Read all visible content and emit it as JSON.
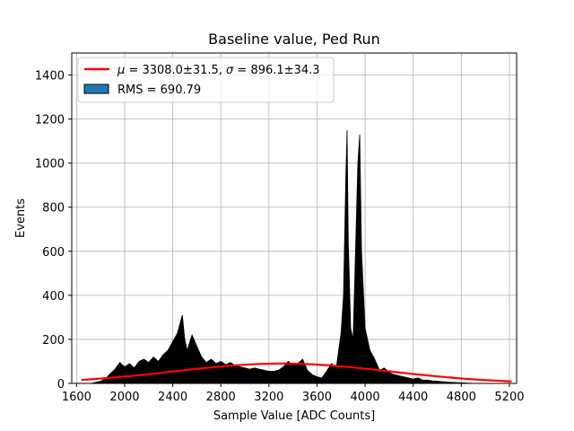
{
  "chart_data": {
    "type": "bar",
    "title": "Baseline value, Ped Run",
    "xlabel": "Sample Value [ADC Counts]",
    "ylabel": "Events",
    "xlim": [
      1560,
      5260
    ],
    "ylim": [
      0,
      1500
    ],
    "xticks": [
      1600,
      2000,
      2400,
      2800,
      3200,
      3600,
      4000,
      4400,
      4800,
      5200
    ],
    "yticks": [
      0,
      200,
      400,
      600,
      800,
      1000,
      1200,
      1400
    ],
    "grid": true,
    "legend_position": "top-left",
    "histogram": {
      "name": "RMS = 690.79",
      "color": "#000000",
      "legend_color": "#1f77b4",
      "points": [
        [
          1720,
          0
        ],
        [
          1760,
          5
        ],
        [
          1800,
          10
        ],
        [
          1840,
          20
        ],
        [
          1880,
          45
        ],
        [
          1920,
          65
        ],
        [
          1960,
          95
        ],
        [
          2000,
          75
        ],
        [
          2040,
          90
        ],
        [
          2080,
          70
        ],
        [
          2120,
          100
        ],
        [
          2160,
          110
        ],
        [
          2200,
          95
        ],
        [
          2240,
          120
        ],
        [
          2280,
          100
        ],
        [
          2320,
          130
        ],
        [
          2360,
          150
        ],
        [
          2400,
          190
        ],
        [
          2440,
          230
        ],
        [
          2480,
          310
        ],
        [
          2500,
          200
        ],
        [
          2520,
          150
        ],
        [
          2560,
          220
        ],
        [
          2600,
          170
        ],
        [
          2640,
          120
        ],
        [
          2680,
          95
        ],
        [
          2720,
          110
        ],
        [
          2760,
          90
        ],
        [
          2800,
          100
        ],
        [
          2840,
          85
        ],
        [
          2880,
          95
        ],
        [
          2920,
          80
        ],
        [
          2960,
          75
        ],
        [
          3000,
          70
        ],
        [
          3040,
          65
        ],
        [
          3080,
          70
        ],
        [
          3120,
          65
        ],
        [
          3160,
          60
        ],
        [
          3200,
          55
        ],
        [
          3240,
          55
        ],
        [
          3280,
          60
        ],
        [
          3320,
          75
        ],
        [
          3360,
          100
        ],
        [
          3400,
          85
        ],
        [
          3440,
          90
        ],
        [
          3480,
          110
        ],
        [
          3520,
          60
        ],
        [
          3560,
          40
        ],
        [
          3600,
          30
        ],
        [
          3640,
          25
        ],
        [
          3680,
          55
        ],
        [
          3720,
          90
        ],
        [
          3760,
          70
        ],
        [
          3800,
          230
        ],
        [
          3820,
          400
        ],
        [
          3840,
          940
        ],
        [
          3850,
          1150
        ],
        [
          3860,
          650
        ],
        [
          3880,
          250
        ],
        [
          3900,
          200
        ],
        [
          3920,
          600
        ],
        [
          3940,
          1000
        ],
        [
          3955,
          1130
        ],
        [
          3970,
          600
        ],
        [
          4000,
          250
        ],
        [
          4040,
          150
        ],
        [
          4080,
          110
        ],
        [
          4120,
          60
        ],
        [
          4160,
          70
        ],
        [
          4200,
          50
        ],
        [
          4240,
          40
        ],
        [
          4280,
          35
        ],
        [
          4320,
          30
        ],
        [
          4360,
          25
        ],
        [
          4400,
          20
        ],
        [
          4440,
          25
        ],
        [
          4480,
          15
        ],
        [
          4520,
          15
        ],
        [
          4560,
          12
        ],
        [
          4600,
          10
        ],
        [
          4640,
          8
        ],
        [
          4680,
          6
        ],
        [
          4720,
          5
        ],
        [
          4760,
          4
        ],
        [
          4800,
          3
        ],
        [
          4840,
          2
        ],
        [
          4880,
          1
        ],
        [
          4920,
          0
        ]
      ]
    },
    "fit": {
      "name": "$\\mu = 3308.0\\pm 31.5$, $\\sigma = 896.1\\pm 34.3$",
      "color": "#ff0000",
      "mu": 3308.0,
      "sigma": 896.1,
      "amplitude": 90,
      "x_range": [
        1640,
        5220
      ]
    }
  },
  "legend": {
    "fit_label_mu": "μ",
    "fit_label_mu_value": " = 3308.0±31.5, ",
    "fit_label_sigma": "σ",
    "fit_label_sigma_value": " = 896.1±34.3",
    "hist_label": "RMS = 690.79"
  }
}
